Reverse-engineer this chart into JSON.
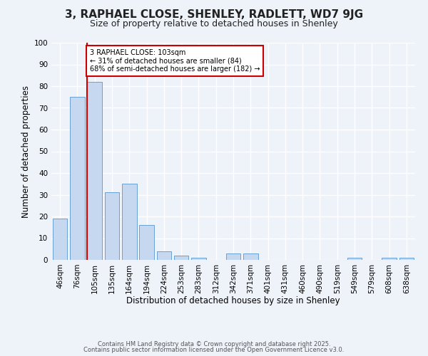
{
  "title": "3, RAPHAEL CLOSE, SHENLEY, RADLETT, WD7 9JG",
  "subtitle": "Size of property relative to detached houses in Shenley",
  "xlabel": "Distribution of detached houses by size in Shenley",
  "ylabel": "Number of detached properties",
  "categories": [
    "46sqm",
    "76sqm",
    "105sqm",
    "135sqm",
    "164sqm",
    "194sqm",
    "224sqm",
    "253sqm",
    "283sqm",
    "312sqm",
    "342sqm",
    "371sqm",
    "401sqm",
    "431sqm",
    "460sqm",
    "490sqm",
    "519sqm",
    "549sqm",
    "579sqm",
    "608sqm",
    "638sqm"
  ],
  "bar_heights": [
    19,
    75,
    82,
    31,
    35,
    16,
    4,
    2,
    1,
    0,
    3,
    3,
    0,
    0,
    0,
    0,
    0,
    1,
    0,
    1,
    1
  ],
  "bar_color": "#c5d8f0",
  "bar_edge_color": "#6aa0d4",
  "vline_color": "#cc0000",
  "annotation_text": "3 RAPHAEL CLOSE: 103sqm\n← 31% of detached houses are smaller (84)\n68% of semi-detached houses are larger (182) →",
  "annotation_box_color": "#ffffff",
  "annotation_box_edge": "#cc0000",
  "ylim": [
    0,
    100
  ],
  "yticks": [
    0,
    10,
    20,
    30,
    40,
    50,
    60,
    70,
    80,
    90,
    100
  ],
  "footer1": "Contains HM Land Registry data © Crown copyright and database right 2025.",
  "footer2": "Contains public sector information licensed under the Open Government Licence v3.0.",
  "bg_color": "#eef2f9",
  "grid_color": "#ffffff",
  "title_fontsize": 11,
  "subtitle_fontsize": 9,
  "axis_label_fontsize": 8.5,
  "tick_fontsize": 7.5,
  "footer_fontsize": 6
}
